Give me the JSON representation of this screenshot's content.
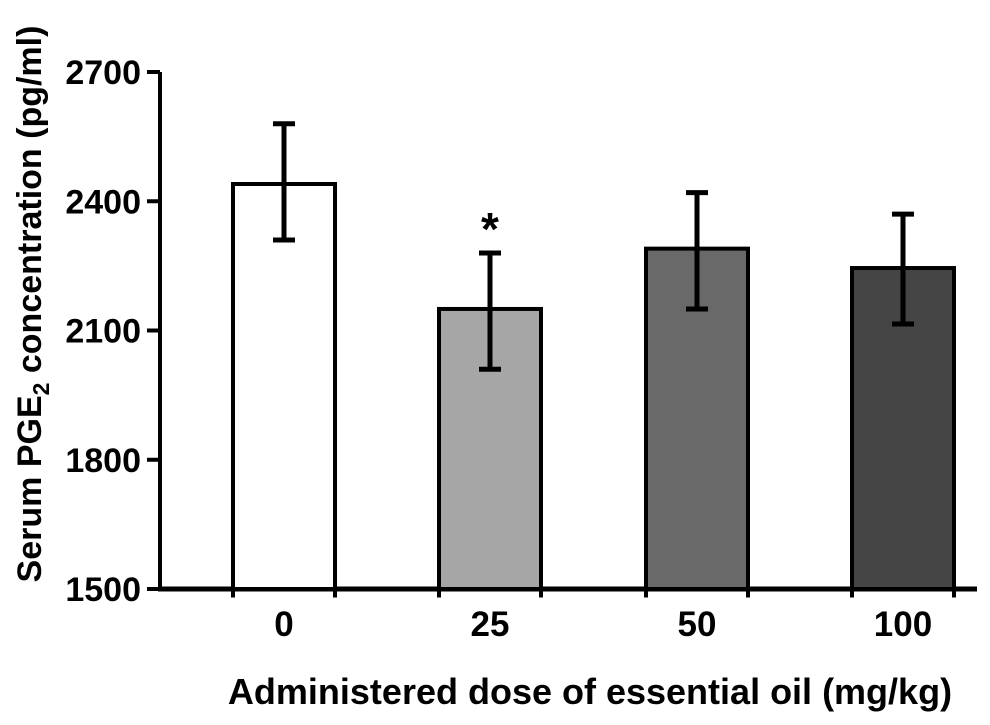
{
  "figure": {
    "background": "#ffffff",
    "text_color": "#000000"
  },
  "chart_data": {
    "type": "bar",
    "title": "",
    "xlabel": "Administered dose of essential oil (mg/kg)",
    "ylabel": {
      "prefix": "Serum PGE",
      "sub": "2",
      "suffix": " concentration (pg/ml)"
    },
    "categories": [
      "0",
      "25",
      "50",
      "100"
    ],
    "values": [
      2440,
      2150,
      2290,
      2245
    ],
    "error_top": [
      2580,
      2280,
      2420,
      2370
    ],
    "error_bottom": [
      2310,
      2010,
      2150,
      2115
    ],
    "bar_colors": [
      "#ffffff",
      "#a6a6a6",
      "#696969",
      "#454545"
    ],
    "bar_outline_color": "#000000",
    "axis_color": "#000000",
    "annotations": [
      {
        "bar_index": 1,
        "text": "*"
      }
    ],
    "ylim": [
      1500,
      2700
    ],
    "yticks": [
      1500,
      1800,
      2100,
      2400,
      2700
    ],
    "grid": false,
    "legend": "none"
  }
}
